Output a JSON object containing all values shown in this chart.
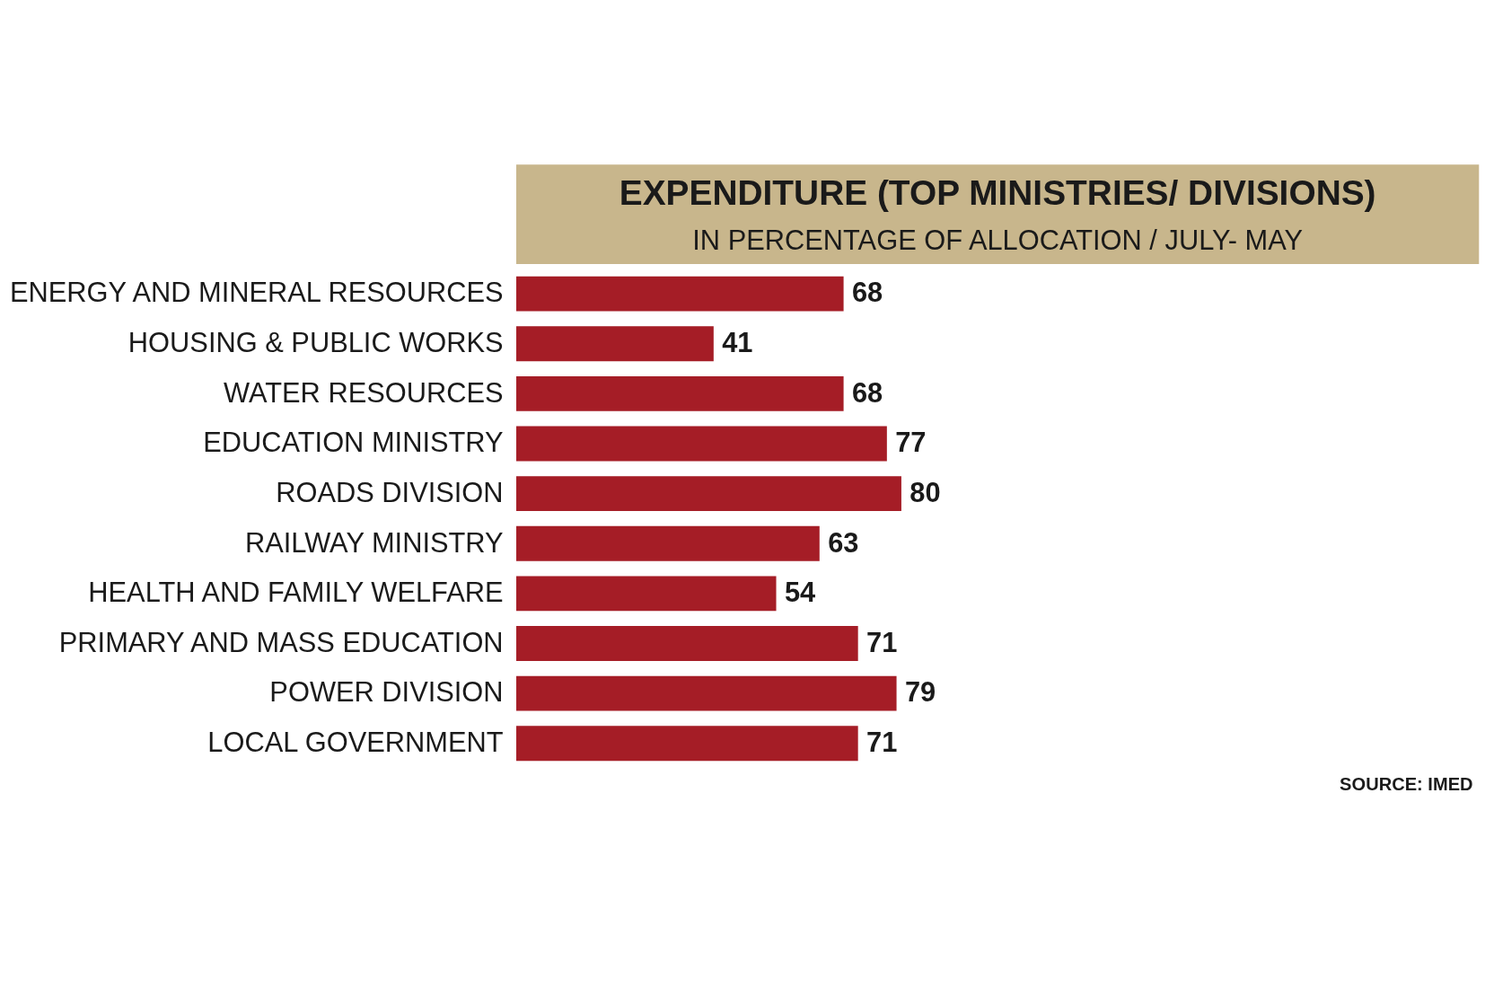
{
  "chart_data": {
    "type": "bar",
    "orientation": "horizontal",
    "title": "EXPENDITURE (TOP MINISTRIES/ DIVISIONS)",
    "subtitle": "IN PERCENTAGE OF ALLOCATION / JULY- MAY",
    "categories": [
      "ENERGY AND MINERAL RESOURCES",
      "HOUSING & PUBLIC WORKS",
      "WATER RESOURCES",
      "EDUCATION MINISTRY",
      "ROADS  DIVISION",
      "RAILWAY MINISTRY",
      "HEALTH AND FAMILY WELFARE",
      "PRIMARY AND MASS EDUCATION",
      "POWER DIVISION",
      "LOCAL GOVERNMENT"
    ],
    "values": [
      68,
      41,
      68,
      77,
      80,
      63,
      54,
      71,
      79,
      71
    ],
    "color": "#a51d26",
    "data_labels": true,
    "annotations": [
      "SOURCE: IMED"
    ]
  }
}
